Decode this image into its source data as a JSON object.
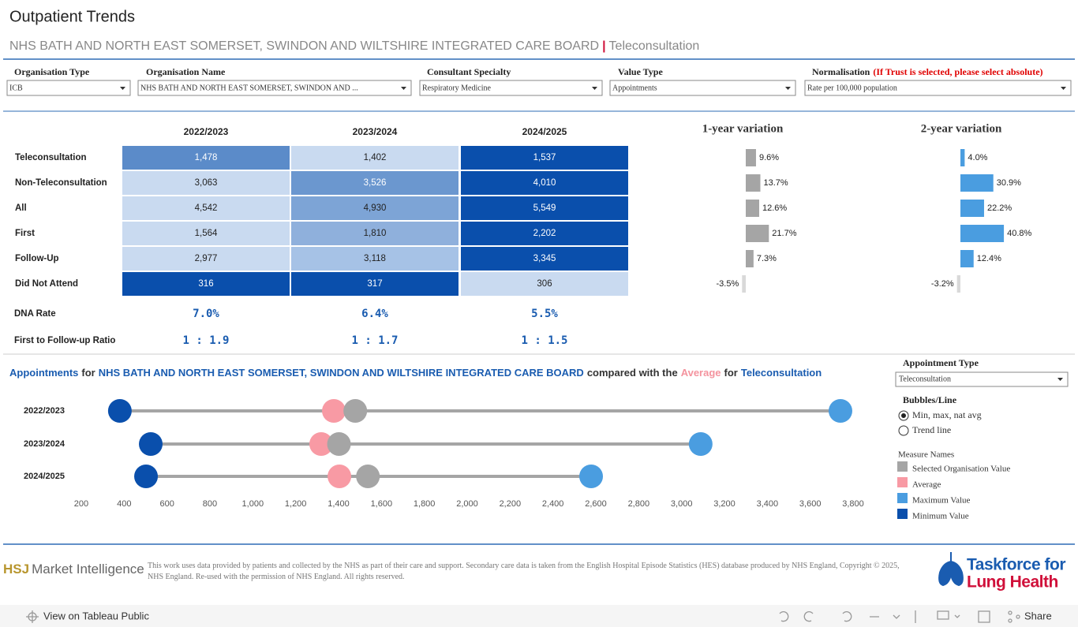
{
  "header": {
    "title": "Outpatient Trends",
    "subtitle": {
      "organisation": "NHS BATH AND NORTH EAST SOMERSET, SWINDON AND WILTSHIRE INTEGRATED CARE BOARD",
      "separator": "|",
      "measure": "Teleconsultation"
    }
  },
  "filters": [
    {
      "label": "Organisation Type",
      "value": "ICB"
    },
    {
      "label": "Organisation Name",
      "value": "NHS BATH AND NORTH EAST SOMERSET, SWINDON AND ..."
    },
    {
      "label": "Consultant Specialty",
      "value": "Respiratory Medicine"
    },
    {
      "label": "Value Type",
      "value": "Appointments"
    },
    {
      "label": "Normalisation",
      "note": "(If Trust is selected, please select absolute)",
      "value": "Rate per 100,000 population"
    }
  ],
  "table": {
    "columns": [
      "2022/2023",
      "2023/2024",
      "2024/2025"
    ],
    "rows": [
      {
        "label": "Teleconsultation",
        "cells": [
          "1,478",
          "1,402",
          "1,537"
        ],
        "colors": [
          "#5b8bc9",
          "#c9daf0",
          "#0a4fac"
        ]
      },
      {
        "label": "Non-Teleconsultation",
        "cells": [
          "3,063",
          "3,526",
          "4,010"
        ],
        "colors": [
          "#c9daf0",
          "#6b97cf",
          "#0a4fac"
        ]
      },
      {
        "label": "All",
        "cells": [
          "4,542",
          "4,930",
          "5,549"
        ],
        "colors": [
          "#c9daf0",
          "#7da4d6",
          "#0a4fac"
        ]
      },
      {
        "label": "First",
        "cells": [
          "1,564",
          "1,810",
          "2,202"
        ],
        "colors": [
          "#c9daf0",
          "#8fb0dc",
          "#0a4fac"
        ]
      },
      {
        "label": "Follow-Up",
        "cells": [
          "2,977",
          "3,118",
          "3,345"
        ],
        "colors": [
          "#c9daf0",
          "#a6c2e6",
          "#0a4fac"
        ]
      },
      {
        "label": "Did Not Attend",
        "cells": [
          "316",
          "317",
          "306"
        ],
        "colors": [
          "#0a4fac",
          "#0a4fac",
          "#c9daf0"
        ]
      }
    ],
    "summary": [
      {
        "label": "DNA Rate",
        "cells": [
          "7.0%",
          "6.4%",
          "5.5%"
        ]
      },
      {
        "label": "First to Follow-up Ratio",
        "cells": [
          "1 : 1.9",
          "1 : 1.7",
          "1 : 1.5"
        ]
      }
    ]
  },
  "variation": [
    {
      "title": "1-year variation",
      "color": "#a5a5a5",
      "values": [
        9.6,
        13.7,
        12.6,
        21.7,
        7.3,
        -3.5
      ],
      "value_labels": [
        "9.6%",
        "13.7%",
        "12.6%",
        "21.7%",
        "7.3%",
        "-3.5%"
      ]
    },
    {
      "title": "2-year variation",
      "color": "#4a9de0",
      "values": [
        4.0,
        30.9,
        22.2,
        40.8,
        12.4,
        -3.2
      ],
      "value_labels": [
        "4.0%",
        "30.9%",
        "22.2%",
        "40.8%",
        "12.4%",
        "-3.2%"
      ]
    }
  ],
  "chart_data": {
    "type": "dumbbell",
    "title_parts": [
      {
        "text": "Appointments",
        "color": "#1a5cb0"
      },
      {
        "text": "for",
        "color": "#333333"
      },
      {
        "text": "NHS BATH AND NORTH EAST SOMERSET, SWINDON AND WILTSHIRE INTEGRATED CARE BOARD",
        "color": "#1a5cb0"
      },
      {
        "text": "compared with the",
        "color": "#333333"
      },
      {
        "text": "Average",
        "color": "#f4939e"
      },
      {
        "text": "for",
        "color": "#333333"
      },
      {
        "text": "Teleconsultation",
        "color": "#1a5cb0"
      }
    ],
    "categories": [
      "2022/2023",
      "2023/2024",
      "2024/2025"
    ],
    "series": [
      {
        "name": "Selected Organisation Value",
        "color": "#a5a5a5",
        "values": [
          1478,
          1402,
          1537
        ]
      },
      {
        "name": "Average",
        "color": "#f89aa4",
        "values": [
          1378,
          1319,
          1404
        ]
      },
      {
        "name": "Maximum Value",
        "color": "#4a9de0",
        "values": [
          3741,
          3089,
          2578
        ]
      },
      {
        "name": "Minimum Value",
        "color": "#0a4fac",
        "values": [
          380,
          524,
          502
        ]
      }
    ],
    "xlim": [
      150,
      3850
    ],
    "xticks": [
      200,
      400,
      600,
      800,
      {
        "value": 1000,
        "label": "1,000"
      },
      {
        "value": 1200,
        "label": "1,200"
      },
      {
        "value": 1400,
        "label": "1,400"
      },
      {
        "value": 1600,
        "label": "1,600"
      },
      {
        "value": 1800,
        "label": "1,800"
      },
      {
        "value": 2000,
        "label": "2,000"
      },
      {
        "value": 2200,
        "label": "2,200"
      },
      {
        "value": 2400,
        "label": "2,400"
      },
      {
        "value": 2600,
        "label": "2,600"
      },
      {
        "value": 2800,
        "label": "2,800"
      },
      {
        "value": 3000,
        "label": "3,000"
      },
      {
        "value": 3200,
        "label": "3,200"
      },
      {
        "value": 3400,
        "label": "3,400"
      },
      {
        "value": 3600,
        "label": "3,600"
      },
      {
        "value": 3800,
        "label": "3,800"
      }
    ]
  },
  "controls": {
    "appointment_type": {
      "label": "Appointment Type",
      "value": "Teleconsultation"
    },
    "bubbles_line": {
      "label": "Bubbles/Line",
      "options": [
        "Min, max, nat avg",
        "Trend line"
      ],
      "selected": 0
    },
    "legend_title": "Measure Names"
  },
  "footer": {
    "brand": [
      "HSJ",
      "Market Intelligence"
    ],
    "disclaimer": "This work uses data provided by patients and collected by the NHS as part of their care and support. Secondary care data is taken from the English Hospital Episode Statistics (HES) database produced by NHS England, Copyright © 2025, NHS England. Re-used with the permission of NHS England. All rights reserved.",
    "partner": [
      "Taskforce for",
      "Lung Health"
    ]
  },
  "toolbar": {
    "view": "View on Tableau Public",
    "share": "Share"
  }
}
